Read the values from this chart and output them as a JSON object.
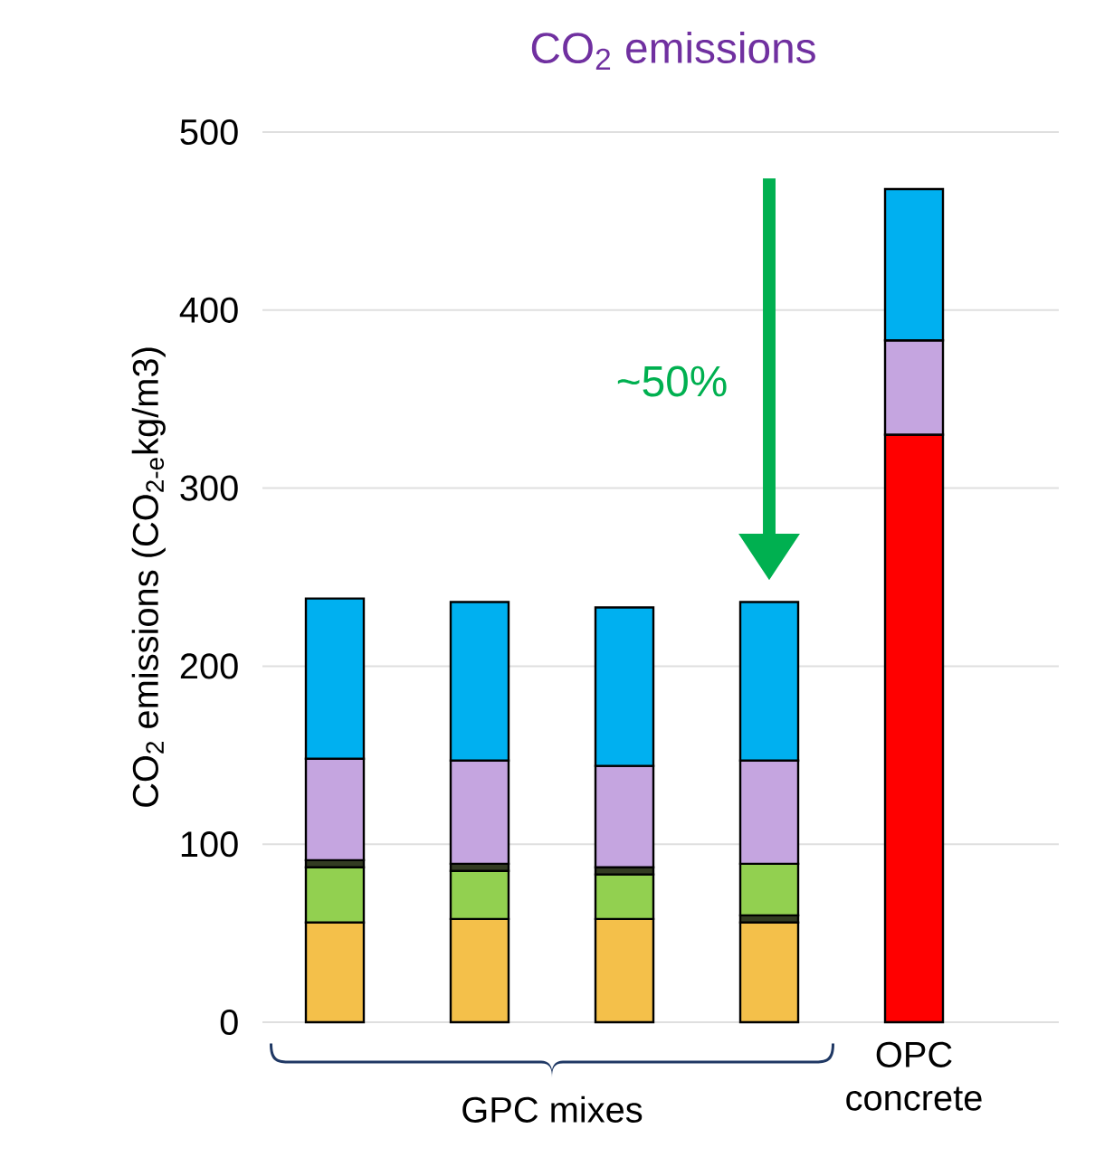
{
  "chart_data": {
    "type": "bar",
    "stacked": true,
    "title": "CO$_{2}$ emissions",
    "ylabel": "CO$_{2}$ emissions (CO$_{2-e}$kg/m3)",
    "categories": [
      null,
      null,
      null,
      null,
      "OPC concrete"
    ],
    "series": [
      {
        "color": "#f4c04a",
        "values": [
          56,
          58,
          58,
          56,
          null
        ]
      },
      {
        "color": "#333b22",
        "values": [
          null,
          null,
          null,
          4,
          null
        ]
      },
      {
        "color": "#92d050",
        "values": [
          31,
          27,
          25,
          29,
          null
        ]
      },
      {
        "color": "#333b22",
        "values": [
          4,
          4,
          4,
          null,
          null
        ]
      },
      {
        "color": "#ff0000",
        "values": [
          null,
          null,
          null,
          null,
          330
        ]
      },
      {
        "color": "#c5a5e0",
        "values": [
          57,
          58,
          57,
          58,
          53
        ]
      },
      {
        "color": "#00b0f0",
        "values": [
          90,
          89,
          89,
          89,
          85
        ]
      }
    ],
    "ylim": [
      0,
      500
    ],
    "yticks": [
      0,
      100,
      200,
      300,
      400,
      500
    ],
    "grid": "y",
    "annotations": [
      "~50%",
      "GPC mixes"
    ]
  }
}
